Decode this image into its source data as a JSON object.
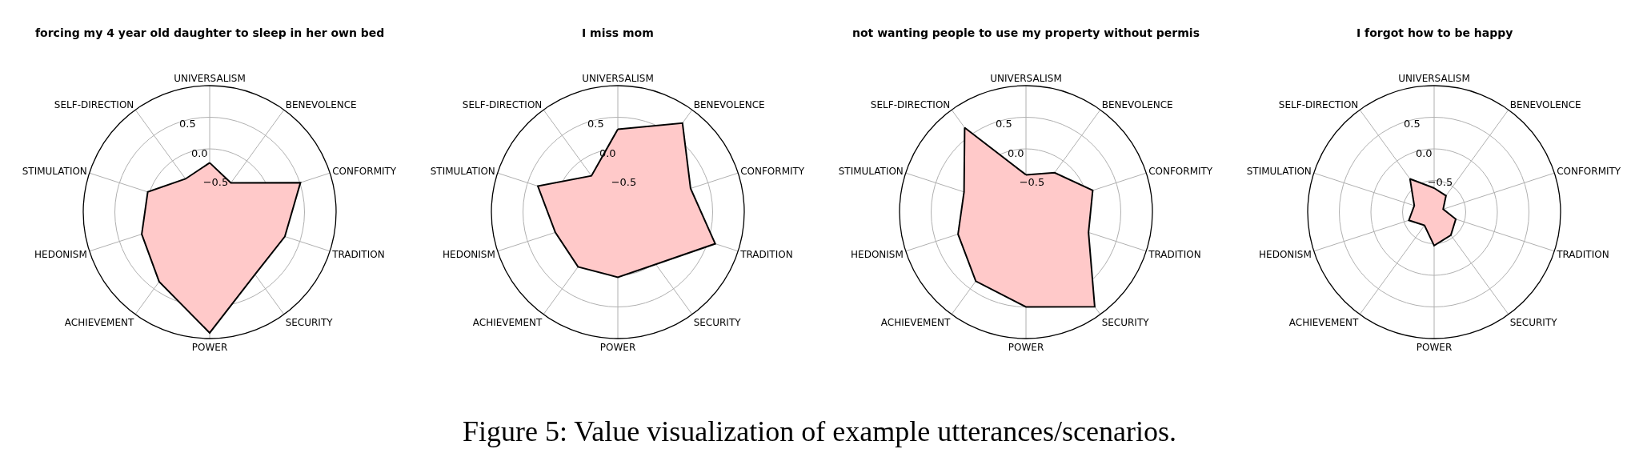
{
  "chart_data": [
    {
      "type": "radar",
      "title": "forcing my 4 year old daughter to sleep in her own bed",
      "categories": [
        "UNIVERSALISM",
        "BENEVOLENCE",
        "CONFORMITY",
        "TRADITION",
        "SECURITY",
        "POWER",
        "ACHIEVEMENT",
        "HEDONISM",
        "STIMULATION",
        "SELF-DIRECTION"
      ],
      "ylim": [
        -1,
        1
      ],
      "yticks": [
        {
          "value": -0.5,
          "label": "−0.5"
        },
        {
          "value": 0,
          "label": "0.0"
        },
        {
          "value": 0.5,
          "label": "0.5"
        }
      ],
      "grid": true,
      "series": [
        {
          "color": "#ffc9c9",
          "values": [
            -0.22,
            -0.43,
            0.51,
            0.25,
            0.22,
            0.91,
            0.36,
            0.13,
            0.03,
            -0.35
          ]
        }
      ],
      "annotations": [
        "Figure 5: Value visualization of example utterances/scenarios."
      ]
    },
    {
      "type": "radar",
      "title": "I miss mom",
      "categories": [
        "UNIVERSALISM",
        "BENEVOLENCE",
        "CONFORMITY",
        "TRADITION",
        "SECURITY",
        "POWER",
        "ACHIEVEMENT",
        "HEDONISM",
        "STIMULATION",
        "SELF-DIRECTION"
      ],
      "ylim": [
        -1,
        1
      ],
      "yticks": [
        {
          "value": -0.5,
          "label": "−0.5"
        },
        {
          "value": 0,
          "label": "0.0"
        },
        {
          "value": 0.5,
          "label": "0.5"
        }
      ],
      "grid": true,
      "series": [
        {
          "color": "#ffc9c9",
          "values": [
            0.31,
            0.74,
            0.21,
            0.62,
            0.02,
            0.03,
            0.07,
            0.04,
            0.33,
            -0.29
          ]
        }
      ]
    },
    {
      "type": "radar",
      "title": "not wanting people to use my property without permis",
      "categories": [
        "UNIVERSALISM",
        "BENEVOLENCE",
        "CONFORMITY",
        "TRADITION",
        "SECURITY",
        "POWER",
        "ACHIEVEMENT",
        "HEDONISM",
        "STIMULATION",
        "SELF-DIRECTION"
      ],
      "ylim": [
        -1,
        1
      ],
      "yticks": [
        {
          "value": -0.5,
          "label": "−0.5"
        },
        {
          "value": 0,
          "label": "0.0"
        },
        {
          "value": 0.5,
          "label": "0.5"
        }
      ],
      "grid": true,
      "series": [
        {
          "color": "#ffc9c9",
          "values": [
            -0.41,
            -0.23,
            0.11,
            0.04,
            0.85,
            0.5,
            0.35,
            0.13,
            0.03,
            0.65
          ]
        }
      ]
    },
    {
      "type": "radar",
      "title": "I forgot how to be happy",
      "categories": [
        "UNIVERSALISM",
        "BENEVOLENCE",
        "CONFORMITY",
        "TRADITION",
        "SECURITY",
        "POWER",
        "ACHIEVEMENT",
        "HEDONISM",
        "STIMULATION",
        "SELF-DIRECTION"
      ],
      "ylim": [
        -1,
        1
      ],
      "yticks": [
        {
          "value": -0.5,
          "label": "−0.5"
        },
        {
          "value": 0,
          "label": "0.0"
        },
        {
          "value": 0.5,
          "label": "0.5"
        }
      ],
      "grid": true,
      "series": [
        {
          "color": "#ffc9c9",
          "values": [
            -0.62,
            -0.68,
            -0.85,
            -0.64,
            -0.55,
            -0.47,
            -0.74,
            -0.58,
            -0.67,
            -0.35
          ]
        }
      ]
    }
  ]
}
